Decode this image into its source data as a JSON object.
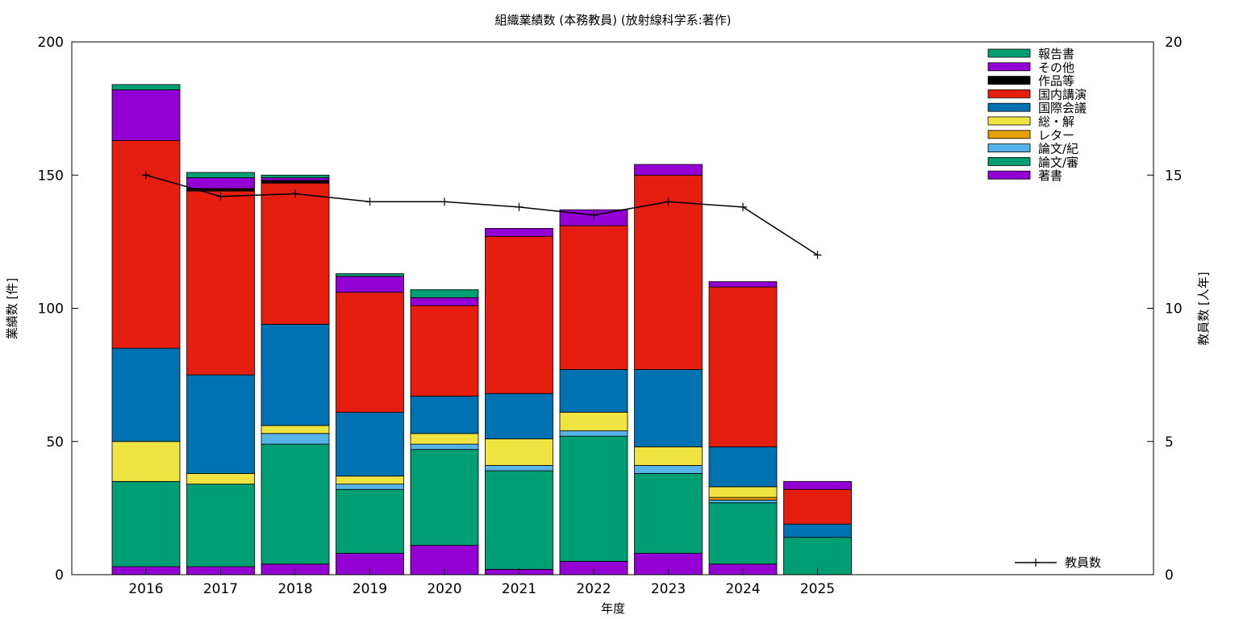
{
  "chart_data": {
    "type": "bar",
    "stacked": true,
    "title": "組織業績数 (本務教員) (放射線科学系:著作)",
    "xlabel": "年度",
    "ylabel": "業績数 [件]",
    "y2label": "教員数 [人年]",
    "ylim": [
      0,
      200
    ],
    "yticks": [
      0,
      50,
      100,
      150,
      200
    ],
    "y2lim": [
      0,
      20
    ],
    "y2ticks": [
      0,
      5,
      10,
      15,
      20
    ],
    "categories": [
      "2016",
      "2017",
      "2018",
      "2019",
      "2020",
      "2021",
      "2022",
      "2023",
      "2024",
      "2025"
    ],
    "legend_position": "top-right",
    "series": [
      {
        "name": "著書",
        "color": "#9400d3",
        "values": [
          3,
          3,
          4,
          8,
          11,
          2,
          5,
          8,
          4,
          0
        ]
      },
      {
        "name": "論文/審",
        "color": "#009e73",
        "values": [
          32,
          31,
          45,
          24,
          36,
          37,
          47,
          30,
          23,
          14
        ]
      },
      {
        "name": "論文/紀",
        "color": "#56b4e9",
        "values": [
          0,
          0,
          4,
          2,
          2,
          2,
          2,
          3,
          1,
          0
        ]
      },
      {
        "name": "レター",
        "color": "#e69f00",
        "values": [
          0,
          0,
          0,
          0,
          0,
          0,
          0,
          0,
          1,
          0
        ]
      },
      {
        "name": "総・解",
        "color": "#f0e442",
        "values": [
          15,
          4,
          3,
          3,
          4,
          10,
          7,
          7,
          4,
          0
        ]
      },
      {
        "name": "国際会議",
        "color": "#0072b2",
        "values": [
          35,
          37,
          38,
          24,
          14,
          17,
          16,
          29,
          15,
          5
        ]
      },
      {
        "name": "国内講演",
        "color": "#e51e10",
        "values": [
          78,
          69,
          53,
          45,
          34,
          59,
          54,
          73,
          60,
          13
        ]
      },
      {
        "name": "作品等",
        "color": "#000000",
        "values": [
          0,
          1,
          1,
          0,
          0,
          0,
          0,
          0,
          0,
          0
        ]
      },
      {
        "name": "その他",
        "color": "#9400d3",
        "values": [
          19,
          4,
          1,
          6,
          3,
          3,
          6,
          4,
          2,
          3
        ]
      },
      {
        "name": "報告書",
        "color": "#009e73",
        "values": [
          2,
          2,
          1,
          1,
          3,
          0,
          0,
          0,
          0,
          0
        ]
      }
    ],
    "line_series": {
      "name": "教員数",
      "axis": "y2",
      "color": "#000000",
      "values": [
        15.0,
        14.2,
        14.3,
        14.0,
        14.0,
        13.8,
        13.5,
        14.0,
        13.8,
        12.0
      ]
    },
    "grid": false
  }
}
